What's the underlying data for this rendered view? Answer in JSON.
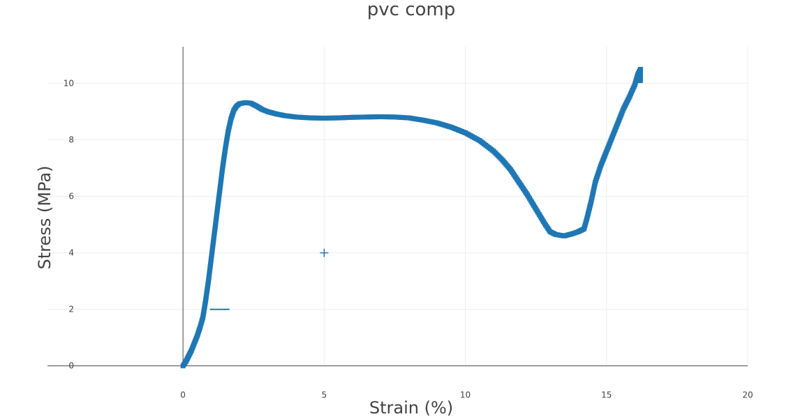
{
  "chart_data": {
    "type": "scatter",
    "title": "pvc comp",
    "xlabel": "Strain (%)",
    "ylabel": "Stress (MPa)",
    "xlim": [
      -4.8,
      20
    ],
    "ylim": [
      -0.5,
      11.3
    ],
    "xticks": [
      0,
      5,
      10,
      15,
      20
    ],
    "yticks": [
      0,
      2,
      4,
      6,
      8,
      10
    ],
    "grid": true,
    "legend": "none",
    "colors": {
      "series": "#1f77b4",
      "grid": "#eeeeee",
      "zeroline": "#444444"
    },
    "series": [
      {
        "marker": "square",
        "points": [
          [
            0,
            0
          ],
          [
            0.1,
            0.15
          ],
          [
            0.2,
            0.35
          ],
          [
            0.3,
            0.55
          ],
          [
            0.4,
            0.8
          ],
          [
            0.5,
            1.05
          ],
          [
            0.6,
            1.35
          ],
          [
            0.7,
            1.7
          ],
          [
            0.8,
            2.3
          ],
          [
            0.9,
            3.0
          ],
          [
            1.0,
            3.8
          ],
          [
            1.1,
            4.6
          ],
          [
            1.2,
            5.4
          ],
          [
            1.3,
            6.2
          ],
          [
            1.4,
            7.0
          ],
          [
            1.5,
            7.7
          ],
          [
            1.6,
            8.3
          ],
          [
            1.7,
            8.75
          ],
          [
            1.8,
            9.05
          ],
          [
            1.9,
            9.2
          ],
          [
            2.0,
            9.28
          ],
          [
            2.2,
            9.32
          ],
          [
            2.4,
            9.3
          ],
          [
            2.6,
            9.2
          ],
          [
            2.8,
            9.08
          ],
          [
            3.0,
            9.0
          ],
          [
            3.3,
            8.92
          ],
          [
            3.6,
            8.86
          ],
          [
            4.0,
            8.81
          ],
          [
            4.5,
            8.78
          ],
          [
            5.0,
            8.77
          ],
          [
            5.5,
            8.78
          ],
          [
            6.0,
            8.8
          ],
          [
            6.5,
            8.81
          ],
          [
            7.0,
            8.82
          ],
          [
            7.5,
            8.81
          ],
          [
            8.0,
            8.78
          ],
          [
            8.5,
            8.7
          ],
          [
            9.0,
            8.6
          ],
          [
            9.5,
            8.45
          ],
          [
            10.0,
            8.25
          ],
          [
            10.5,
            7.98
          ],
          [
            11.0,
            7.6
          ],
          [
            11.3,
            7.3
          ],
          [
            11.6,
            6.95
          ],
          [
            11.9,
            6.5
          ],
          [
            12.2,
            6.05
          ],
          [
            12.5,
            5.55
          ],
          [
            12.8,
            5.05
          ],
          [
            13.0,
            4.75
          ],
          [
            13.2,
            4.65
          ],
          [
            13.5,
            4.6
          ],
          [
            13.8,
            4.68
          ],
          [
            14.0,
            4.75
          ],
          [
            14.2,
            4.85
          ],
          [
            14.3,
            5.2
          ],
          [
            14.45,
            5.8
          ],
          [
            14.6,
            6.5
          ],
          [
            14.8,
            7.1
          ],
          [
            15.0,
            7.6
          ],
          [
            15.2,
            8.1
          ],
          [
            15.4,
            8.6
          ],
          [
            15.6,
            9.1
          ],
          [
            15.8,
            9.5
          ],
          [
            16.0,
            9.95
          ],
          [
            16.1,
            10.3
          ],
          [
            16.2,
            10.5
          ],
          [
            16.2,
            10.1
          ]
        ]
      }
    ],
    "annotations": [
      {
        "marker": "dash",
        "x": 1.3,
        "y": 2.0
      },
      {
        "marker": "cross",
        "x": 5.0,
        "y": 4.0
      }
    ]
  }
}
